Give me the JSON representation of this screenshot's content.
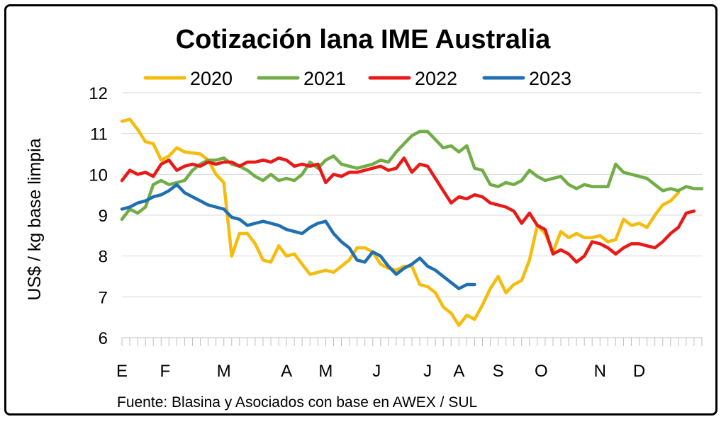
{
  "chart_data": {
    "type": "line",
    "title": "Cotización lana IME Australia",
    "ylabel": "US$ / kg base limpia",
    "xlabel": "",
    "source": "Fuente: Blasina y Asociados con base en AWEX / SUL",
    "ylim": [
      6,
      12
    ],
    "yticks": [
      "6",
      "7",
      "8",
      "9",
      "10",
      "11",
      "12"
    ],
    "grid": true,
    "legend_position": "top",
    "x_months": [
      {
        "label": "E",
        "week": 0
      },
      {
        "label": "F",
        "week": 5.5
      },
      {
        "label": "M",
        "week": 13
      },
      {
        "label": "A",
        "week": 21
      },
      {
        "label": "M",
        "week": 26
      },
      {
        "label": "J",
        "week": 32.5
      },
      {
        "label": "J",
        "week": 39
      },
      {
        "label": "A",
        "week": 43
      },
      {
        "label": "S",
        "week": 48
      },
      {
        "label": "O",
        "week": 53.5
      },
      {
        "label": "N",
        "week": 61
      },
      {
        "label": "D",
        "week": 66
      }
    ],
    "series": [
      {
        "name": "2020",
        "color": "#F5BC0C",
        "points": [
          [
            0,
            11.3
          ],
          [
            1,
            11.35
          ],
          [
            2,
            11.1
          ],
          [
            3,
            10.8
          ],
          [
            4,
            10.75
          ],
          [
            5,
            10.35
          ],
          [
            6,
            10.45
          ],
          [
            7,
            10.65
          ],
          [
            8,
            10.55
          ],
          [
            10,
            10.5
          ],
          [
            11,
            10.35
          ],
          [
            12,
            10
          ],
          [
            13,
            9.8
          ],
          [
            14,
            8
          ],
          [
            15,
            8.55
          ],
          [
            16,
            8.55
          ],
          [
            17,
            8.3
          ],
          [
            18,
            7.9
          ],
          [
            19,
            7.85
          ],
          [
            20,
            8.25
          ],
          [
            21,
            8.0
          ],
          [
            22,
            8.05
          ],
          [
            23,
            7.8
          ],
          [
            24,
            7.55
          ],
          [
            25,
            7.6
          ],
          [
            26,
            7.65
          ],
          [
            27,
            7.6
          ],
          [
            28,
            7.75
          ],
          [
            29,
            7.9
          ],
          [
            30,
            8.2
          ],
          [
            31,
            8.2
          ],
          [
            32,
            8.1
          ],
          [
            33,
            7.8
          ],
          [
            34,
            7.7
          ],
          [
            35,
            7.65
          ],
          [
            36,
            7.75
          ],
          [
            37,
            7.75
          ],
          [
            38,
            7.3
          ],
          [
            39,
            7.25
          ],
          [
            40,
            7.1
          ],
          [
            41,
            6.75
          ],
          [
            42,
            6.6
          ],
          [
            43,
            6.3
          ],
          [
            44,
            6.55
          ],
          [
            45,
            6.45
          ],
          [
            46,
            6.8
          ],
          [
            47,
            7.2
          ],
          [
            48,
            7.5
          ],
          [
            49,
            7.1
          ],
          [
            50,
            7.3
          ],
          [
            51,
            7.4
          ],
          [
            52,
            7.9
          ],
          [
            53,
            8.75
          ],
          [
            54,
            8.55
          ],
          [
            55,
            8.1
          ],
          [
            56,
            8.6
          ],
          [
            57,
            8.45
          ],
          [
            58,
            8.55
          ],
          [
            59,
            8.45
          ],
          [
            60,
            8.45
          ],
          [
            61,
            8.5
          ],
          [
            62,
            8.35
          ],
          [
            63,
            8.4
          ],
          [
            64,
            8.9
          ],
          [
            65,
            8.75
          ],
          [
            66,
            8.8
          ],
          [
            67,
            8.7
          ],
          [
            68,
            9.0
          ],
          [
            69,
            9.25
          ],
          [
            70,
            9.35
          ],
          [
            71,
            9.55
          ]
        ]
      },
      {
        "name": "2021",
        "color": "#70AD47",
        "points": [
          [
            0,
            8.9
          ],
          [
            1,
            9.15
          ],
          [
            2,
            9.05
          ],
          [
            3,
            9.2
          ],
          [
            4,
            9.75
          ],
          [
            5,
            9.85
          ],
          [
            6,
            9.75
          ],
          [
            7,
            9.8
          ],
          [
            8,
            9.85
          ],
          [
            9,
            10.1
          ],
          [
            10,
            10.25
          ],
          [
            11,
            10.35
          ],
          [
            12,
            10.35
          ],
          [
            13,
            10.4
          ],
          [
            14,
            10.25
          ],
          [
            15,
            10.2
          ],
          [
            16,
            10.1
          ],
          [
            17,
            9.95
          ],
          [
            18,
            9.85
          ],
          [
            19,
            10.0
          ],
          [
            20,
            9.85
          ],
          [
            21,
            9.9
          ],
          [
            22,
            9.85
          ],
          [
            23,
            10.0
          ],
          [
            24,
            10.3
          ],
          [
            25,
            10.15
          ],
          [
            26,
            10.35
          ],
          [
            27,
            10.45
          ],
          [
            28,
            10.25
          ],
          [
            29,
            10.2
          ],
          [
            30,
            10.15
          ],
          [
            31,
            10.2
          ],
          [
            32,
            10.25
          ],
          [
            33,
            10.35
          ],
          [
            34,
            10.3
          ],
          [
            35,
            10.55
          ],
          [
            36,
            10.75
          ],
          [
            37,
            10.95
          ],
          [
            38,
            11.05
          ],
          [
            39,
            11.05
          ],
          [
            40,
            10.85
          ],
          [
            41,
            10.65
          ],
          [
            42,
            10.7
          ],
          [
            43,
            10.55
          ],
          [
            44,
            10.7
          ],
          [
            45,
            10.15
          ],
          [
            46,
            10.1
          ],
          [
            47,
            9.75
          ],
          [
            48,
            9.7
          ],
          [
            49,
            9.8
          ],
          [
            50,
            9.75
          ],
          [
            51,
            9.85
          ],
          [
            52,
            10.1
          ],
          [
            53,
            9.95
          ],
          [
            54,
            9.85
          ],
          [
            55,
            9.9
          ],
          [
            56,
            9.95
          ],
          [
            57,
            9.75
          ],
          [
            58,
            9.65
          ],
          [
            59,
            9.75
          ],
          [
            60,
            9.7
          ],
          [
            61,
            9.7
          ],
          [
            62,
            9.7
          ],
          [
            63,
            10.25
          ],
          [
            64,
            10.05
          ],
          [
            65,
            10.0
          ],
          [
            66,
            9.95
          ],
          [
            67,
            9.9
          ],
          [
            68,
            9.75
          ],
          [
            69,
            9.6
          ],
          [
            70,
            9.65
          ],
          [
            71,
            9.6
          ],
          [
            72,
            9.7
          ],
          [
            73,
            9.65
          ],
          [
            74,
            9.65
          ]
        ]
      },
      {
        "name": "2022",
        "color": "#E81A17",
        "points": [
          [
            0,
            9.85
          ],
          [
            1,
            10.1
          ],
          [
            2,
            10.0
          ],
          [
            3,
            10.05
          ],
          [
            4,
            9.95
          ],
          [
            5,
            10.25
          ],
          [
            6,
            10.35
          ],
          [
            7,
            10.1
          ],
          [
            8,
            10.2
          ],
          [
            9,
            10.25
          ],
          [
            10,
            10.2
          ],
          [
            11,
            10.3
          ],
          [
            12,
            10.25
          ],
          [
            13,
            10.3
          ],
          [
            14,
            10.3
          ],
          [
            15,
            10.2
          ],
          [
            16,
            10.3
          ],
          [
            17,
            10.3
          ],
          [
            18,
            10.35
          ],
          [
            19,
            10.3
          ],
          [
            20,
            10.4
          ],
          [
            21,
            10.35
          ],
          [
            22,
            10.2
          ],
          [
            23,
            10.25
          ],
          [
            24,
            10.2
          ],
          [
            25,
            10.25
          ],
          [
            26,
            9.8
          ],
          [
            27,
            10.0
          ],
          [
            28,
            9.95
          ],
          [
            29,
            10.05
          ],
          [
            30,
            10.05
          ],
          [
            31,
            10.1
          ],
          [
            32,
            10.15
          ],
          [
            33,
            10.2
          ],
          [
            34,
            10.1
          ],
          [
            35,
            10.15
          ],
          [
            36,
            10.4
          ],
          [
            37,
            10.05
          ],
          [
            38,
            10.25
          ],
          [
            39,
            10.2
          ],
          [
            40,
            9.9
          ],
          [
            41,
            9.6
          ],
          [
            42,
            9.3
          ],
          [
            43,
            9.45
          ],
          [
            44,
            9.4
          ],
          [
            45,
            9.5
          ],
          [
            46,
            9.45
          ],
          [
            47,
            9.3
          ],
          [
            48,
            9.25
          ],
          [
            49,
            9.2
          ],
          [
            50,
            9.1
          ],
          [
            51,
            8.8
          ],
          [
            52,
            9.05
          ],
          [
            53,
            8.75
          ],
          [
            54,
            8.65
          ],
          [
            55,
            8.05
          ],
          [
            56,
            8.15
          ],
          [
            57,
            8.05
          ],
          [
            58,
            7.85
          ],
          [
            59,
            8.0
          ],
          [
            60,
            8.35
          ],
          [
            61,
            8.3
          ],
          [
            62,
            8.2
          ],
          [
            63,
            8.05
          ],
          [
            64,
            8.2
          ],
          [
            65,
            8.3
          ],
          [
            66,
            8.3
          ],
          [
            67,
            8.25
          ],
          [
            68,
            8.2
          ],
          [
            69,
            8.35
          ],
          [
            70,
            8.55
          ],
          [
            71,
            8.7
          ],
          [
            72,
            9.05
          ],
          [
            73,
            9.1
          ]
        ]
      },
      {
        "name": "2023",
        "color": "#1F6FB2",
        "points": [
          [
            0,
            9.15
          ],
          [
            1,
            9.2
          ],
          [
            2,
            9.3
          ],
          [
            3,
            9.35
          ],
          [
            4,
            9.45
          ],
          [
            5,
            9.5
          ],
          [
            6,
            9.6
          ],
          [
            7,
            9.75
          ],
          [
            8,
            9.55
          ],
          [
            9,
            9.45
          ],
          [
            10,
            9.35
          ],
          [
            11,
            9.25
          ],
          [
            12,
            9.2
          ],
          [
            13,
            9.15
          ],
          [
            14,
            8.95
          ],
          [
            15,
            8.9
          ],
          [
            16,
            8.75
          ],
          [
            17,
            8.8
          ],
          [
            18,
            8.85
          ],
          [
            19,
            8.8
          ],
          [
            20,
            8.75
          ],
          [
            21,
            8.65
          ],
          [
            22,
            8.6
          ],
          [
            23,
            8.55
          ],
          [
            24,
            8.7
          ],
          [
            25,
            8.8
          ],
          [
            26,
            8.85
          ],
          [
            27,
            8.55
          ],
          [
            28,
            8.35
          ],
          [
            29,
            8.2
          ],
          [
            30,
            7.9
          ],
          [
            31,
            7.85
          ],
          [
            32,
            8.1
          ],
          [
            33,
            8.0
          ],
          [
            34,
            7.75
          ],
          [
            35,
            7.55
          ],
          [
            36,
            7.7
          ],
          [
            37,
            7.8
          ],
          [
            38,
            7.95
          ],
          [
            39,
            7.75
          ],
          [
            40,
            7.65
          ],
          [
            41,
            7.5
          ],
          [
            42,
            7.35
          ],
          [
            43,
            7.2
          ],
          [
            44,
            7.3
          ],
          [
            45,
            7.3
          ]
        ]
      }
    ]
  }
}
